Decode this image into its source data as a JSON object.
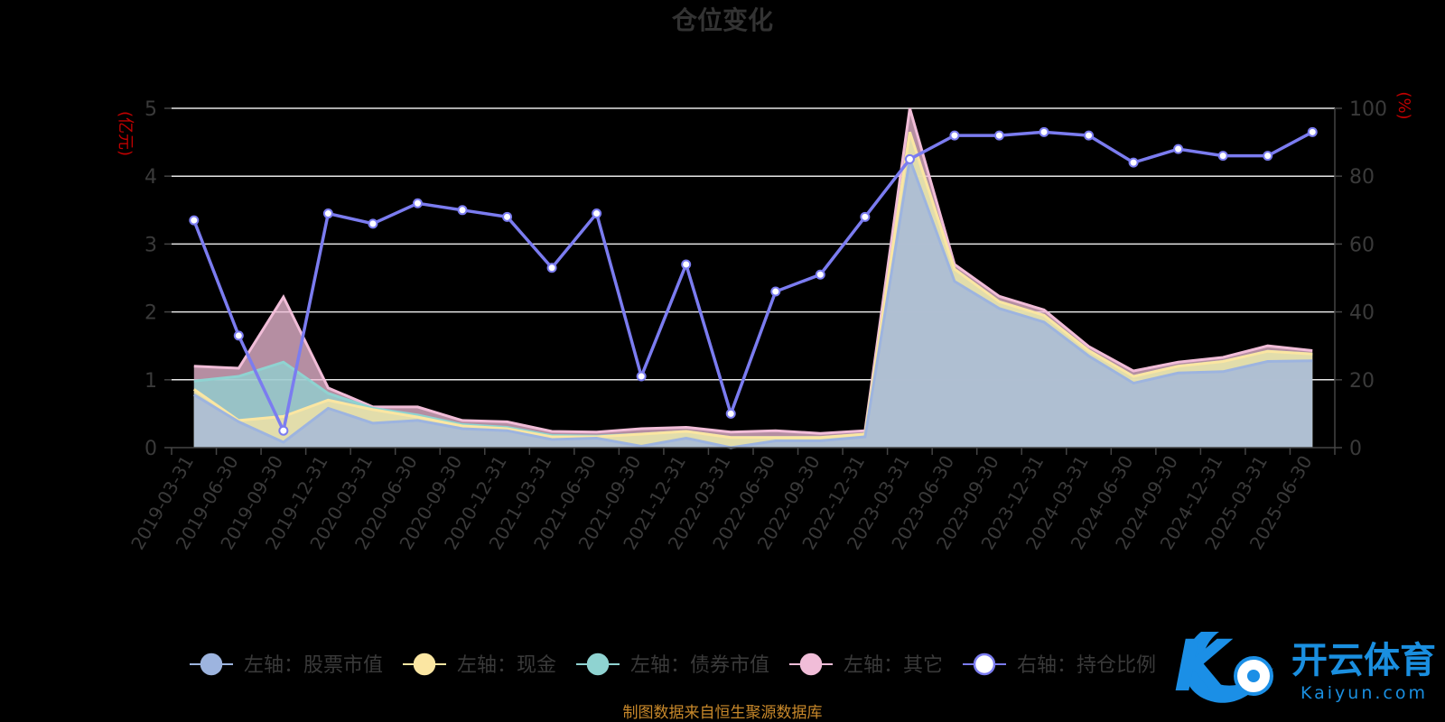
{
  "chart_data": {
    "type": "area",
    "title": "仓位变化",
    "y_left_unit": "(亿元)",
    "y_right_unit": "(%)",
    "y_left_ticks": [
      "0",
      "1",
      "2",
      "3",
      "4",
      "5"
    ],
    "y_right_ticks": [
      "0",
      "20",
      "40",
      "60",
      "80",
      "100"
    ],
    "ylim_left": [
      0,
      5
    ],
    "ylim_right": [
      0,
      100
    ],
    "grid": true,
    "legend_position": "bottom",
    "categories": [
      "2019-03-31",
      "2019-06-30",
      "2019-09-30",
      "2019-12-31",
      "2020-03-31",
      "2020-06-30",
      "2020-09-30",
      "2020-12-31",
      "2021-03-31",
      "2021-06-30",
      "2021-09-30",
      "2021-12-31",
      "2022-03-31",
      "2022-06-30",
      "2022-09-30",
      "2022-12-31",
      "2023-03-31",
      "2023-06-30",
      "2023-09-30",
      "2023-12-31",
      "2024-03-31",
      "2024-06-30",
      "2024-09-30",
      "2024-12-31",
      "2025-03-31",
      "2025-06-30"
    ],
    "series": [
      {
        "name": "左轴：股票市值",
        "axis": "left",
        "color": "#9db4df",
        "values": [
          0.78,
          0.38,
          0.08,
          0.58,
          0.36,
          0.4,
          0.28,
          0.25,
          0.12,
          0.14,
          0.02,
          0.14,
          0.0,
          0.1,
          0.1,
          0.16,
          4.25,
          2.45,
          2.05,
          1.85,
          1.35,
          0.95,
          1.1,
          1.12,
          1.27,
          1.28
        ]
      },
      {
        "name": "左轴：现金",
        "axis": "left",
        "color": "#fbe6a2",
        "values": [
          0.08,
          0.02,
          0.38,
          0.12,
          0.2,
          0.05,
          0.04,
          0.03,
          0.04,
          0.02,
          0.18,
          0.1,
          0.15,
          0.05,
          0.05,
          0.04,
          0.4,
          0.18,
          0.1,
          0.1,
          0.08,
          0.1,
          0.1,
          0.15,
          0.15,
          0.1
        ]
      },
      {
        "name": "左轴：债券市值",
        "axis": "left",
        "color": "#8fd3d1",
        "values": [
          0.12,
          0.65,
          0.8,
          0.1,
          0.02,
          0.03,
          0.02,
          0.02,
          0.02,
          0.01,
          0.0,
          0.0,
          0.0,
          0.0,
          0.0,
          0.0,
          0.0,
          0.0,
          0.0,
          0.0,
          0.0,
          0.0,
          0.0,
          0.0,
          0.0,
          0.0
        ]
      },
      {
        "name": "左轴：其它",
        "axis": "left",
        "color": "#f1bdd8",
        "values": [
          0.22,
          0.12,
          0.96,
          0.08,
          0.02,
          0.12,
          0.06,
          0.08,
          0.06,
          0.06,
          0.08,
          0.06,
          0.08,
          0.1,
          0.06,
          0.05,
          0.35,
          0.07,
          0.08,
          0.08,
          0.06,
          0.08,
          0.06,
          0.06,
          0.08,
          0.05
        ]
      },
      {
        "name": "右轴：持仓比例",
        "axis": "right",
        "color": "#7b7cf0",
        "values": [
          67,
          33,
          5,
          69,
          66,
          72,
          70,
          68,
          53,
          69,
          21,
          54,
          10,
          46,
          51,
          68,
          85,
          92,
          92,
          93,
          92,
          84,
          88,
          86,
          86,
          93
        ]
      }
    ]
  },
  "source_note": "制图数据来自恒生聚源数据库",
  "watermark": {
    "main": "开云体育",
    "sub": "Kaiyun.com",
    "logo": "K"
  }
}
